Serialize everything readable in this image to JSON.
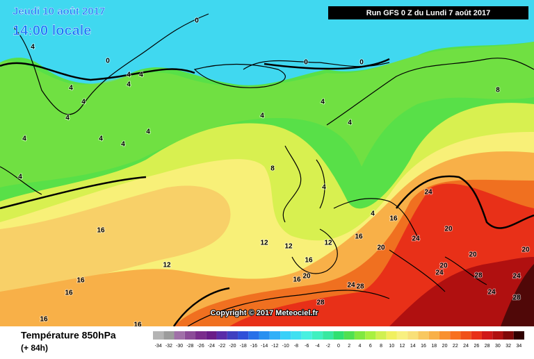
{
  "header": {
    "date": "Jeudi 10 août 2017",
    "time": "14:00 locale",
    "run": "Run GFS 0 Z du Lundi 7 août 2017"
  },
  "copyright": "Copyright © 2017 Meteociel.fr",
  "legend": {
    "title": "Température 850hPa",
    "subtitle": "(+ 84h)",
    "ticks": [
      -34,
      -32,
      -30,
      -28,
      -26,
      -24,
      -22,
      -20,
      -18,
      -16,
      -14,
      -12,
      -10,
      -8,
      -6,
      -4,
      -2,
      0,
      2,
      4,
      6,
      8,
      10,
      12,
      14,
      16,
      18,
      20,
      22,
      24,
      26,
      28,
      30,
      32,
      34
    ],
    "colors": [
      "#b4b4b4",
      "#9c9c9c",
      "#a070a8",
      "#8c4c98",
      "#7a2c8c",
      "#6a1c88",
      "#5a2ca8",
      "#4040c0",
      "#3050d8",
      "#2870e8",
      "#2890f0",
      "#30b0f8",
      "#38d0f8",
      "#40e0f0",
      "#48f0e0",
      "#40f0c0",
      "#38e8a0",
      "#30e070",
      "#50e050",
      "#80e840",
      "#a8f040",
      "#d0f050",
      "#f0f060",
      "#f8f080",
      "#f8e078",
      "#f8c860",
      "#f8b048",
      "#f89030",
      "#f87020",
      "#f05018",
      "#e83018",
      "#d01818",
      "#b01010",
      "#800808",
      "#300000"
    ]
  },
  "contour_labels": [
    0,
    0,
    0,
    0,
    4,
    4,
    4,
    4,
    4,
    4,
    4,
    4,
    4,
    4,
    4,
    4,
    4,
    4,
    4,
    4,
    4,
    8,
    8,
    12,
    12,
    12,
    12,
    16,
    16,
    16,
    16,
    16,
    16,
    16,
    16,
    16,
    20,
    20,
    20,
    20,
    20,
    20,
    24,
    24,
    24,
    24,
    24,
    24,
    28,
    28,
    28,
    28
  ]
}
